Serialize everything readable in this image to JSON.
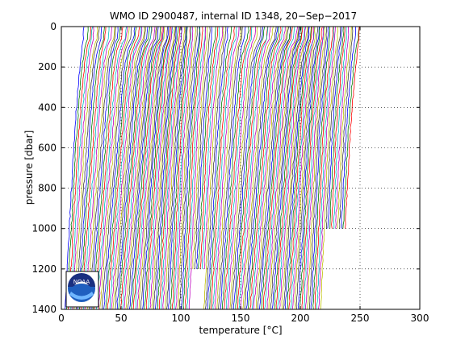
{
  "chart_data": {
    "type": "line",
    "title": "WMO ID 2900487, internal ID 1348, 20−Sep−2017",
    "xlabel": "temperature [",
    "xlabel_unit": "°C]",
    "ylabel": "pressure [dbar]",
    "xlim": [
      0,
      300
    ],
    "ylim": [
      1400,
      0
    ],
    "y_inverted": true,
    "grid": true,
    "xticks": [
      0,
      50,
      100,
      150,
      200,
      250,
      300
    ],
    "yticks": [
      0,
      200,
      400,
      600,
      800,
      1000,
      1200,
      1400
    ],
    "series_description_values": {
      "profile_count": 150,
      "surface_temp_start": 22,
      "deep_temp_start": 3,
      "offset_step": 1.55
    },
    "colors": [
      "#0000ff",
      "#008000",
      "#ff0000",
      "#00bfbf",
      "#bf00bf",
      "#bfbf00",
      "#404040"
    ]
  },
  "logo": {
    "name": "noaa-logo",
    "text": "NOAA"
  }
}
